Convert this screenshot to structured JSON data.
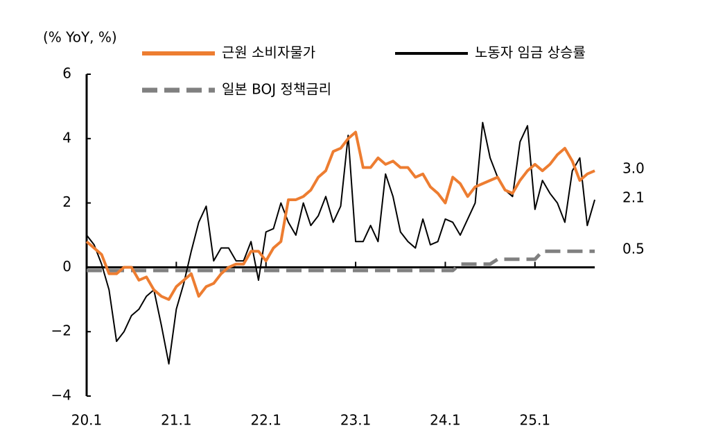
{
  "chart_data": {
    "type": "line",
    "y_axis_label": "(% YoY, %)",
    "categories": [
      "20.1",
      null,
      null,
      null,
      null,
      null,
      null,
      null,
      null,
      null,
      null,
      null,
      "21.1",
      null,
      null,
      null,
      null,
      null,
      null,
      null,
      null,
      null,
      null,
      null,
      "22.1",
      null,
      null,
      null,
      null,
      null,
      null,
      null,
      null,
      null,
      null,
      null,
      "23.1",
      null,
      null,
      null,
      null,
      null,
      null,
      null,
      null,
      null,
      null,
      null,
      "24.1",
      null,
      null,
      null,
      null,
      null,
      null,
      null,
      null,
      null,
      null,
      null,
      "25.1",
      null,
      null,
      null,
      null,
      null,
      null,
      null,
      null
    ],
    "series": [
      {
        "name": "근원 소비자물가",
        "color": "#ed7d31",
        "dash": false,
        "width": 4,
        "values": [
          0.8,
          0.6,
          0.4,
          -0.2,
          -0.2,
          0.0,
          0.0,
          -0.4,
          -0.3,
          -0.7,
          -0.9,
          -1.0,
          -0.6,
          -0.4,
          -0.2,
          -0.9,
          -0.6,
          -0.5,
          -0.2,
          0.0,
          0.1,
          0.1,
          0.5,
          0.5,
          0.2,
          0.6,
          0.8,
          2.1,
          2.1,
          2.2,
          2.4,
          2.8,
          3.0,
          3.6,
          3.7,
          4.0,
          4.2,
          3.1,
          3.1,
          3.4,
          3.2,
          3.3,
          3.1,
          3.1,
          2.8,
          2.9,
          2.5,
          2.3,
          2.0,
          2.8,
          2.6,
          2.2,
          2.5,
          2.6,
          2.7,
          2.8,
          2.4,
          2.3,
          2.7,
          3.0,
          3.2,
          3.0,
          3.2,
          3.5,
          3.7,
          3.3,
          2.7,
          2.9,
          3.0
        ]
      },
      {
        "name": "노동자 임금 상승률",
        "color": "#000000",
        "dash": false,
        "width": 2,
        "values": [
          1.0,
          0.7,
          0.1,
          -0.7,
          -2.3,
          -2.0,
          -1.5,
          -1.3,
          -0.9,
          -0.7,
          -1.8,
          -3.0,
          -1.3,
          -0.5,
          0.5,
          1.4,
          1.9,
          0.2,
          0.6,
          0.6,
          0.2,
          0.2,
          0.8,
          -0.4,
          1.1,
          1.2,
          2.0,
          1.4,
          1.0,
          2.0,
          1.3,
          1.6,
          2.2,
          1.4,
          1.9,
          4.1,
          0.8,
          0.8,
          1.3,
          0.8,
          2.9,
          2.2,
          1.1,
          0.8,
          0.6,
          1.5,
          0.7,
          0.8,
          1.5,
          1.4,
          1.0,
          1.5,
          2.0,
          4.5,
          3.4,
          2.8,
          2.4,
          2.2,
          3.9,
          4.4,
          1.8,
          2.7,
          2.3,
          2.0,
          1.4,
          3.0,
          3.4,
          1.3,
          2.1
        ]
      },
      {
        "name": "일본 BOJ 정책금리",
        "color": "#808080",
        "dash": true,
        "width": 5,
        "values": [
          -0.1,
          -0.1,
          -0.1,
          -0.1,
          -0.1,
          -0.1,
          -0.1,
          -0.1,
          -0.1,
          -0.1,
          -0.1,
          -0.1,
          -0.1,
          -0.1,
          -0.1,
          -0.1,
          -0.1,
          -0.1,
          -0.1,
          -0.1,
          -0.1,
          -0.1,
          -0.1,
          -0.1,
          -0.1,
          -0.1,
          -0.1,
          -0.1,
          -0.1,
          -0.1,
          -0.1,
          -0.1,
          -0.1,
          -0.1,
          -0.1,
          -0.1,
          -0.1,
          -0.1,
          -0.1,
          -0.1,
          -0.1,
          -0.1,
          -0.1,
          -0.1,
          -0.1,
          -0.1,
          -0.1,
          -0.1,
          -0.1,
          -0.1,
          0.1,
          0.1,
          0.1,
          0.1,
          0.1,
          0.25,
          0.25,
          0.25,
          0.25,
          0.25,
          0.25,
          0.5,
          0.5,
          0.5,
          0.5,
          0.5,
          0.5,
          0.5,
          0.5
        ]
      }
    ],
    "end_labels": [
      "3.0",
      "2.1",
      "0.5"
    ],
    "ylim": [
      -4,
      6
    ],
    "yticks": [
      {
        "value": -4,
        "label": "−4"
      },
      {
        "value": -2,
        "label": "−2"
      },
      0,
      2,
      4,
      6
    ]
  }
}
